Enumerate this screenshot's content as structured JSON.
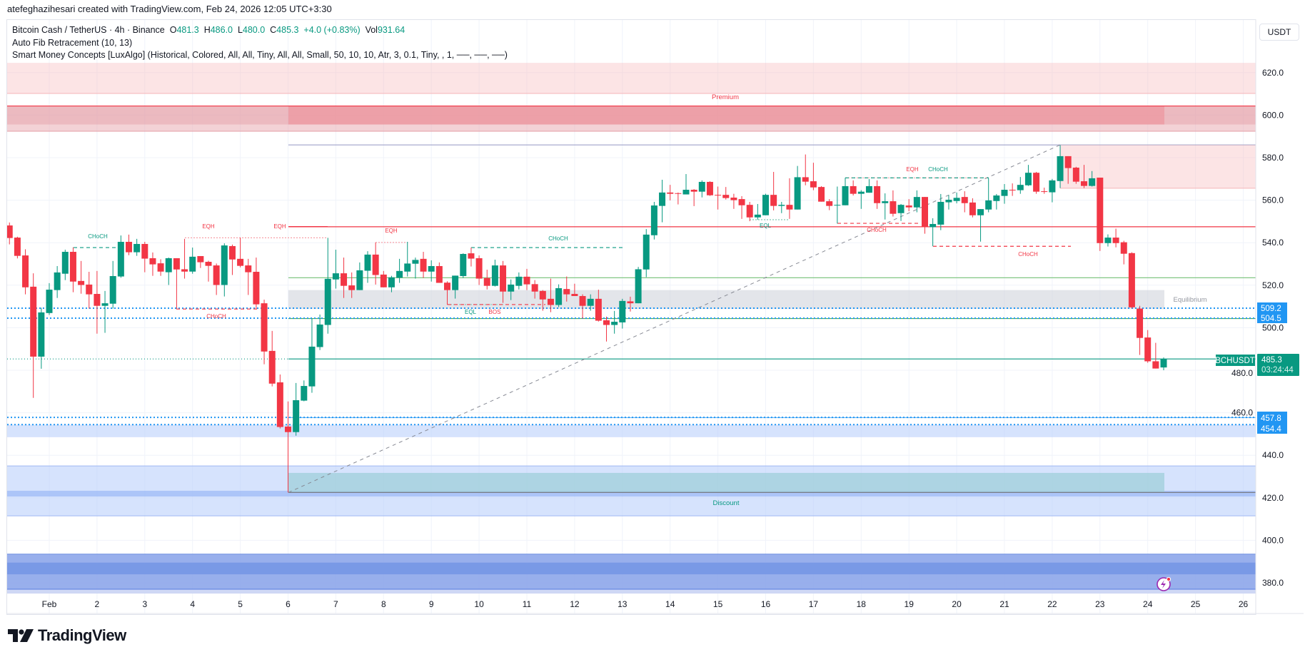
{
  "credit": "atefeghazihesari created with TradingView.com, Feb 24, 2026 12:05 UTC+3:30",
  "legend": {
    "symbol": "Bitcoin Cash / TetherUS · 4h · Binance",
    "open_label": "O",
    "open": "481.3",
    "high_label": "H",
    "high": "486.0",
    "low_label": "L",
    "low": "480.0",
    "close_label": "C",
    "close": "485.3",
    "change": "+4.0 (+0.83%)",
    "vol_label": "Vol",
    "vol": "931.64",
    "indicator1": "Auto Fib Retracement (10, 13)",
    "indicator2": "Smart Money Concepts [LuxAlgo] (Historical, Colored, All, All, Tiny, All, All, Small, 50, 10, 10, Atr, 3, 0.1, Tiny, , 1, ──, ──, ──)"
  },
  "currency_button": "USDT",
  "logo_text": "TradingView",
  "colors": {
    "up": "#089981",
    "down": "#f23645",
    "blue_level": "#2196f3",
    "premium": "#f23645",
    "discount": "#089981"
  },
  "price_axis": {
    "ticks": [
      "620.0",
      "600.0",
      "580.0",
      "560.0",
      "540.0",
      "520.0",
      "500.0",
      "480.0",
      "460.0",
      "440.0",
      "420.0",
      "400.0",
      "380.0"
    ]
  },
  "time_axis": {
    "ticks": [
      "Feb",
      "2",
      "3",
      "4",
      "5",
      "6",
      "7",
      "8",
      "9",
      "10",
      "11",
      "12",
      "13",
      "14",
      "15",
      "16",
      "17",
      "18",
      "19",
      "20",
      "21",
      "22",
      "23",
      "24",
      "25",
      "26"
    ]
  },
  "price_labels": {
    "symbol_tag": "BCHUSDT",
    "last_price": "485.3",
    "countdown": "03:24:44",
    "levels": [
      "509.2",
      "504.5",
      "457.8",
      "454.4"
    ]
  },
  "zones": {
    "premium": "Premium",
    "equilibrium": "Equilibrium",
    "discount": "Discount"
  },
  "structure_labels": [
    "CHoCH",
    "EQH",
    "EQH",
    "CHoCH",
    "EQH",
    "CHoCH",
    "EQL",
    "BOS",
    "EQL",
    "EQH",
    "CHoCH",
    "CHoCH",
    "CHoCH"
  ],
  "alert_icon": "lightning-icon",
  "chart_data": {
    "type": "candlestick",
    "interval": "4h",
    "ylim": [
      372,
      628
    ],
    "candles_ohlc": [
      [
        548.1,
        549.5,
        539.2,
        542.2
      ],
      [
        542.4,
        542.8,
        532.6,
        533.8
      ],
      [
        534.0,
        536.9,
        515.7,
        519.0
      ],
      [
        519.3,
        525.6,
        467.0,
        486.4
      ],
      [
        486.4,
        509.4,
        480.7,
        507.2
      ],
      [
        506.9,
        521.0,
        506.0,
        517.9
      ],
      [
        517.7,
        529.0,
        514.0,
        526.0
      ],
      [
        525.4,
        536.7,
        522.4,
        535.7
      ],
      [
        535.7,
        537.8,
        516.7,
        521.7
      ],
      [
        522.0,
        531.4,
        516.0,
        520.1
      ],
      [
        520.3,
        526.3,
        509.0,
        515.7
      ],
      [
        515.9,
        526.7,
        497.2,
        510.3
      ],
      [
        510.3,
        517.3,
        497.6,
        511.5
      ],
      [
        511.3,
        531.4,
        509.0,
        524.3
      ],
      [
        524.1,
        543.4,
        523.5,
        540.4
      ],
      [
        540.4,
        543.8,
        534.1,
        535.5
      ],
      [
        535.5,
        541.8,
        533.8,
        539.4
      ],
      [
        539.4,
        540.4,
        526.1,
        532.5
      ],
      [
        532.7,
        535.4,
        524.4,
        529.8
      ],
      [
        530.3,
        532.2,
        524.4,
        526.4
      ],
      [
        526.1,
        533.0,
        520.1,
        532.7
      ],
      [
        532.7,
        532.7,
        509.0,
        527.4
      ],
      [
        527.5,
        541.8,
        523.1,
        526.4
      ],
      [
        526.4,
        537.7,
        525.4,
        533.4
      ],
      [
        533.7,
        533.7,
        528.1,
        530.8
      ],
      [
        531.0,
        531.5,
        521.7,
        529.1
      ],
      [
        529.3,
        530.2,
        515.4,
        520.1
      ],
      [
        520.1,
        539.7,
        514.7,
        538.7
      ],
      [
        538.4,
        539.1,
        524.8,
        532.1
      ],
      [
        532.4,
        542.4,
        528.4,
        529.1
      ],
      [
        529.3,
        532.4,
        515.4,
        526.1
      ],
      [
        526.3,
        533.0,
        509.0,
        511.0
      ],
      [
        511.5,
        513.2,
        482.8,
        488.8
      ],
      [
        489.1,
        498.5,
        472.4,
        473.7
      ],
      [
        474.3,
        478.0,
        452.6,
        453.3
      ],
      [
        453.5,
        465.3,
        422.5,
        450.9
      ],
      [
        450.9,
        474.0,
        449.2,
        465.9
      ],
      [
        465.7,
        475.2,
        465.4,
        472.6
      ],
      [
        472.4,
        504.3,
        469.4,
        491.1
      ],
      [
        490.9,
        506.2,
        489.5,
        501.5
      ],
      [
        501.3,
        542.3,
        497.2,
        523.0
      ],
      [
        522.7,
        536.7,
        518.4,
        525.6
      ],
      [
        525.6,
        533.0,
        514.0,
        519.7
      ],
      [
        519.9,
        526.0,
        514.0,
        517.7
      ],
      [
        517.7,
        530.7,
        517.7,
        527.0
      ],
      [
        526.8,
        536.0,
        521.1,
        534.4
      ],
      [
        534.4,
        540.1,
        520.3,
        524.8
      ],
      [
        525.0,
        526.7,
        519.0,
        519.0
      ],
      [
        519.0,
        524.4,
        516.7,
        523.7
      ],
      [
        523.5,
        532.4,
        521.1,
        526.7
      ],
      [
        526.4,
        540.4,
        524.1,
        530.2
      ],
      [
        530.1,
        533.0,
        523.1,
        531.9
      ],
      [
        532.4,
        535.7,
        523.4,
        526.4
      ],
      [
        526.4,
        531.7,
        521.7,
        529.0
      ],
      [
        529.0,
        530.7,
        521.1,
        521.1
      ],
      [
        521.2,
        521.8,
        510.8,
        517.7
      ],
      [
        517.7,
        524.5,
        513.7,
        524.5
      ],
      [
        524.3,
        535.0,
        523.4,
        534.7
      ],
      [
        535.0,
        537.7,
        528.8,
        532.5
      ],
      [
        532.7,
        534.0,
        520.1,
        523.1
      ],
      [
        523.4,
        527.3,
        518.0,
        519.7
      ],
      [
        519.7,
        532.0,
        519.4,
        529.3
      ],
      [
        529.3,
        531.4,
        511.7,
        517.0
      ],
      [
        517.0,
        522.7,
        513.0,
        520.3
      ],
      [
        519.7,
        526.0,
        518.0,
        524.0
      ],
      [
        524.0,
        527.7,
        517.7,
        520.4
      ],
      [
        520.5,
        522.4,
        513.7,
        517.0
      ],
      [
        517.3,
        517.7,
        508.0,
        513.3
      ],
      [
        513.6,
        523.1,
        507.3,
        510.7
      ],
      [
        510.7,
        520.4,
        509.7,
        518.6
      ],
      [
        518.2,
        524.1,
        512.3,
        515.7
      ],
      [
        515.9,
        520.7,
        514.9,
        514.9
      ],
      [
        514.9,
        515.7,
        504.3,
        510.3
      ],
      [
        510.3,
        515.7,
        508.0,
        513.6
      ],
      [
        513.6,
        517.9,
        502.9,
        503.3
      ],
      [
        503.5,
        505.2,
        493.5,
        501.3
      ],
      [
        501.3,
        507.9,
        497.2,
        502.8
      ],
      [
        502.5,
        513.6,
        499.6,
        512.6
      ],
      [
        512.4,
        514.6,
        507.6,
        511.5
      ],
      [
        511.5,
        528.6,
        511.5,
        527.5
      ],
      [
        527.4,
        546.4,
        523.8,
        543.8
      ],
      [
        543.5,
        559.2,
        541.5,
        557.5
      ],
      [
        557.3,
        569.6,
        549.6,
        563.6
      ],
      [
        563.6,
        567.2,
        559.9,
        563.0
      ],
      [
        563.3,
        563.6,
        558.0,
        563.0
      ],
      [
        562.7,
        572.3,
        562.7,
        564.9
      ],
      [
        564.9,
        565.2,
        557.2,
        564.0
      ],
      [
        564.0,
        569.3,
        561.3,
        568.6
      ],
      [
        568.6,
        568.9,
        562.0,
        562.3
      ],
      [
        562.5,
        566.4,
        555.6,
        562.3
      ],
      [
        562.5,
        566.2,
        560.3,
        561.0
      ],
      [
        561.2,
        563.0,
        555.9,
        560.0
      ],
      [
        560.5,
        561.9,
        551.2,
        557.6
      ],
      [
        557.8,
        559.2,
        550.1,
        551.9
      ],
      [
        551.9,
        558.2,
        550.8,
        553.2
      ],
      [
        552.9,
        563.0,
        552.9,
        562.5
      ],
      [
        562.5,
        573.3,
        555.2,
        557.3
      ],
      [
        557.3,
        559.2,
        553.9,
        557.8
      ],
      [
        557.8,
        570.3,
        551.2,
        555.6
      ],
      [
        555.6,
        576.1,
        555.6,
        570.8
      ],
      [
        570.8,
        581.5,
        567.0,
        568.7
      ],
      [
        568.9,
        577.6,
        564.7,
        566.0
      ],
      [
        566.2,
        566.6,
        559.3,
        559.3
      ],
      [
        559.5,
        560.5,
        555.3,
        557.3
      ],
      [
        557.6,
        566.4,
        549.0,
        557.8
      ],
      [
        557.6,
        570.5,
        557.6,
        566.6
      ],
      [
        566.6,
        569.3,
        562.2,
        563.0
      ],
      [
        563.0,
        564.7,
        555.9,
        564.0
      ],
      [
        563.5,
        569.9,
        563.5,
        566.6
      ],
      [
        566.6,
        569.3,
        555.9,
        558.6
      ],
      [
        558.6,
        563.2,
        550.9,
        559.5
      ],
      [
        559.5,
        564.6,
        552.3,
        553.6
      ],
      [
        553.9,
        558.2,
        550.2,
        557.8
      ],
      [
        557.5,
        560.5,
        554.8,
        556.6
      ],
      [
        556.6,
        564.6,
        554.3,
        561.5
      ],
      [
        561.5,
        561.5,
        544.2,
        547.3
      ],
      [
        547.3,
        551.5,
        538.3,
        548.8
      ],
      [
        548.5,
        562.9,
        545.9,
        559.2
      ],
      [
        559.0,
        562.4,
        555.6,
        560.2
      ],
      [
        559.6,
        563.6,
        558.5,
        561.1
      ],
      [
        561.5,
        564.2,
        554.3,
        558.6
      ],
      [
        558.9,
        560.9,
        551.9,
        552.9
      ],
      [
        552.9,
        555.8,
        540.5,
        555.8
      ],
      [
        555.6,
        570.3,
        554.3,
        559.9
      ],
      [
        559.6,
        562.9,
        555.6,
        562.2
      ],
      [
        562.0,
        567.6,
        558.3,
        564.9
      ],
      [
        564.9,
        567.9,
        562.0,
        564.7
      ],
      [
        564.7,
        570.9,
        563.0,
        567.2
      ],
      [
        567.0,
        576.6,
        566.7,
        572.9
      ],
      [
        572.9,
        573.3,
        563.0,
        564.0
      ],
      [
        564.2,
        565.9,
        563.0,
        564.0
      ],
      [
        563.7,
        570.0,
        559.0,
        569.3
      ],
      [
        569.0,
        585.9,
        565.7,
        580.7
      ],
      [
        580.7,
        580.7,
        567.7,
        575.1
      ],
      [
        575.3,
        575.7,
        567.7,
        568.7
      ],
      [
        568.9,
        576.6,
        565.7,
        566.7
      ],
      [
        566.7,
        573.7,
        566.4,
        570.3
      ],
      [
        570.6,
        570.6,
        536.1,
        539.8
      ],
      [
        539.8,
        543.9,
        538.2,
        542.4
      ],
      [
        542.4,
        546.6,
        537.8,
        539.8
      ],
      [
        540.2,
        540.9,
        529.8,
        534.8
      ],
      [
        535.1,
        535.5,
        509.0,
        509.6
      ],
      [
        509.0,
        510.3,
        487.2,
        495.2
      ],
      [
        495.4,
        498.9,
        483.5,
        484.2
      ],
      [
        484.2,
        492.9,
        480.8,
        480.8
      ],
      [
        481.3,
        486.0,
        480.0,
        485.3
      ]
    ],
    "levels": {
      "premium_top": [
        624.6,
        610.2
      ],
      "premium_zone": [
        604.3,
        592.4
      ],
      "fib_high": 586.0,
      "supply_zone": [
        586.0,
        565.6
      ],
      "strong_high_line": 547.5,
      "green_level": 523.5,
      "equilibrium_zone": [
        517.7,
        508.8
      ],
      "blue_levels": [
        509.2,
        504.5,
        457.8,
        454.4
      ],
      "green_level_2": 504.3,
      "last_price": 485.3,
      "demand_band": [
        454.4,
        448.5
      ],
      "discount_zone": [
        435.0,
        411.5
      ],
      "fib_low": 422.5,
      "lower_zone": [
        393.5,
        375.0
      ]
    }
  }
}
